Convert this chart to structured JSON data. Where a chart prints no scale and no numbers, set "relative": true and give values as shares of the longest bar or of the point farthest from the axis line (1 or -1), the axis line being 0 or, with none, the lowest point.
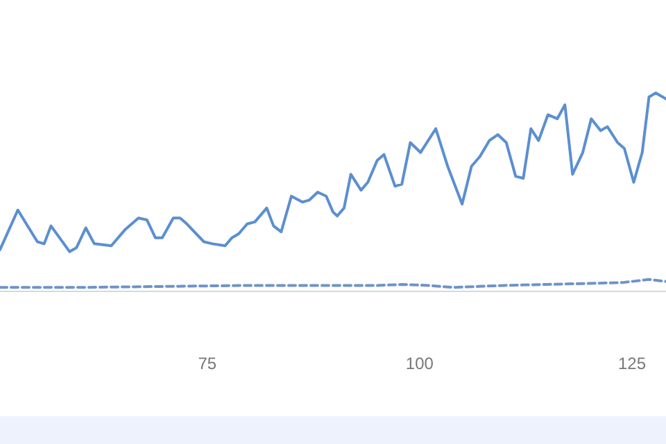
{
  "chart_data": {
    "type": "line",
    "relative": true,
    "xlim": [
      50.6,
      129
    ],
    "xticks": [
      75,
      100,
      125
    ],
    "marker": "none",
    "series": [
      {
        "color": "#5b8fd0",
        "line_style": "solid",
        "x": [
          50.6,
          52.7,
          55,
          55.8,
          56.6,
          58.8,
          59.6,
          60.7,
          61.7,
          63.7,
          65.3,
          66.9,
          67.9,
          68.9,
          69.7,
          71,
          71.8,
          72.6,
          74.6,
          75.6,
          77.1,
          77.9,
          78.7,
          79.7,
          80.6,
          82,
          82.8,
          83.7,
          84.9,
          86.2,
          87,
          88,
          89,
          89.8,
          90.3,
          91.1,
          91.9,
          93.1,
          93.9,
          95,
          95.8,
          97.1,
          97.9,
          98.9,
          100.1,
          101.9,
          103.3,
          105,
          106.1,
          107.1,
          108.2,
          109.2,
          110.2,
          111.3,
          112.2,
          113.1,
          114,
          115.1,
          116.2,
          117.1,
          118,
          119.2,
          120.2,
          121.3,
          122.1,
          123.3,
          124.1,
          125.2,
          126.2,
          127,
          127.8,
          129
        ],
        "values": [
          0.21,
          0.41,
          0.25,
          0.24,
          0.33,
          0.2,
          0.22,
          0.32,
          0.24,
          0.23,
          0.31,
          0.37,
          0.36,
          0.27,
          0.27,
          0.37,
          0.37,
          0.34,
          0.25,
          0.24,
          0.23,
          0.27,
          0.29,
          0.34,
          0.35,
          0.42,
          0.33,
          0.3,
          0.48,
          0.45,
          0.46,
          0.5,
          0.48,
          0.4,
          0.38,
          0.42,
          0.59,
          0.51,
          0.55,
          0.66,
          0.69,
          0.53,
          0.54,
          0.75,
          0.7,
          0.82,
          0.63,
          0.44,
          0.63,
          0.68,
          0.76,
          0.79,
          0.75,
          0.58,
          0.57,
          0.82,
          0.76,
          0.89,
          0.87,
          0.94,
          0.59,
          0.7,
          0.87,
          0.81,
          0.83,
          0.75,
          0.72,
          0.55,
          0.7,
          0.98,
          1,
          0.97
        ]
      },
      {
        "color": "#6f93c8",
        "line_style": "dashed",
        "x": [
          50.6,
          60,
          70,
          80,
          90,
          95,
          98,
          101,
          104,
          107,
          110,
          115,
          120,
          124,
          127,
          129
        ],
        "values": [
          0.02,
          0.02,
          0.025,
          0.03,
          0.03,
          0.03,
          0.035,
          0.03,
          0.02,
          0.025,
          0.03,
          0.035,
          0.04,
          0.045,
          0.06,
          0.05
        ]
      }
    ]
  }
}
